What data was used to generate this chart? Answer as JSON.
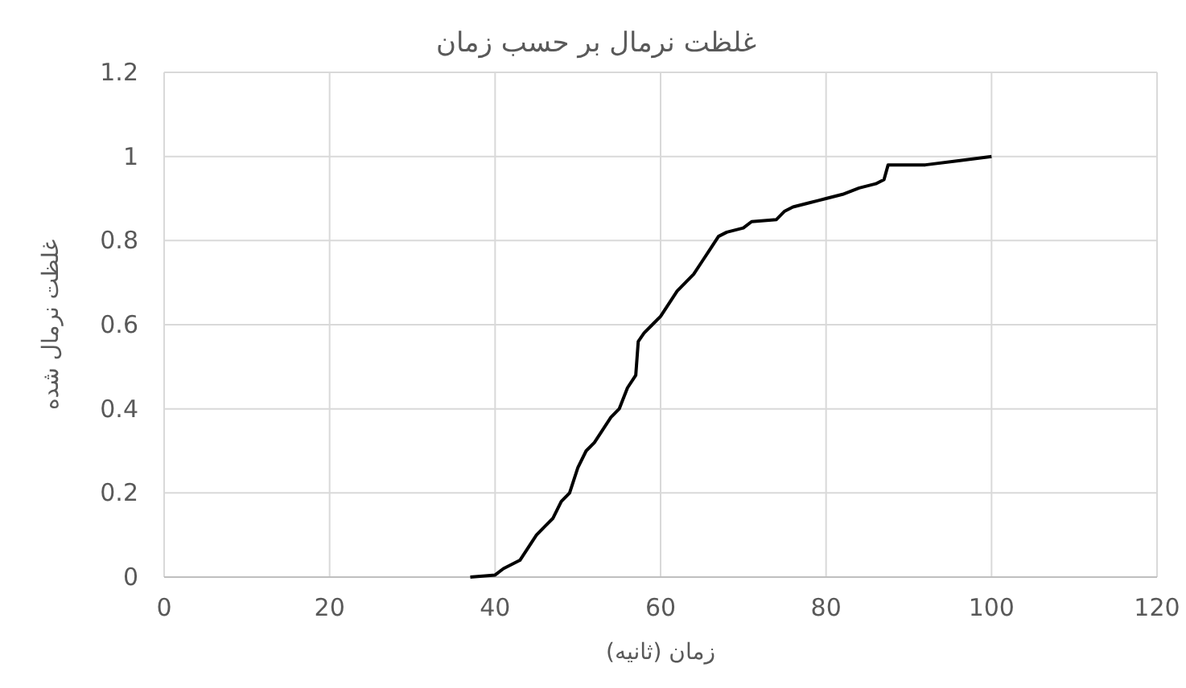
{
  "chart_data": {
    "type": "line",
    "title": "غلظت نرمال بر حسب زمان",
    "xlabel": "زمان (ثانیه)",
    "ylabel": "غلظت نرمال شده",
    "xlim": [
      0,
      120
    ],
    "xticks": [
      0,
      20,
      40,
      60,
      80,
      100,
      120
    ],
    "ylim": [
      0,
      1.2
    ],
    "yticks": [
      0,
      0.2,
      0.4,
      0.6,
      0.8,
      1,
      1.2
    ],
    "grid": true,
    "marker": "none",
    "line_style": "solid",
    "series": [
      {
        "color": "#000000",
        "x": [
          37,
          40,
          41,
          43,
          44,
          45,
          46,
          47,
          48,
          49,
          50,
          51,
          52,
          53,
          54,
          55,
          56,
          57,
          57.3,
          58,
          59,
          60,
          61,
          62,
          63,
          64,
          65,
          66,
          67,
          68,
          70,
          71,
          74,
          75,
          76,
          78,
          80,
          82,
          84,
          86,
          87,
          87.5,
          92,
          96,
          100
        ],
        "values": [
          0,
          0.005,
          0.02,
          0.04,
          0.07,
          0.1,
          0.12,
          0.14,
          0.18,
          0.2,
          0.26,
          0.3,
          0.32,
          0.35,
          0.38,
          0.4,
          0.45,
          0.48,
          0.56,
          0.58,
          0.6,
          0.62,
          0.65,
          0.68,
          0.7,
          0.72,
          0.75,
          0.78,
          0.81,
          0.82,
          0.83,
          0.845,
          0.85,
          0.87,
          0.88,
          0.89,
          0.9,
          0.91,
          0.925,
          0.935,
          0.945,
          0.98,
          0.98,
          0.99,
          1
        ]
      }
    ]
  }
}
